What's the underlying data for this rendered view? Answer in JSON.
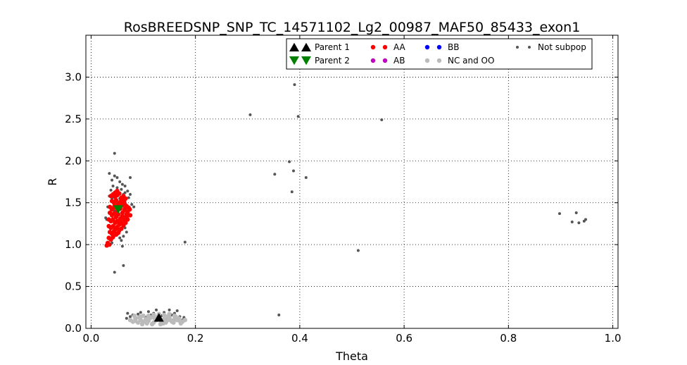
{
  "chart_data": {
    "type": "scatter",
    "title": "RosBREEDSNP_SNP_TC_14571102_Lg2_00987_MAF50_85433_exon1",
    "xlabel": "Theta",
    "ylabel": "R",
    "xlim": [
      -0.01,
      1.01
    ],
    "ylim": [
      0.0,
      3.5
    ],
    "xticks": [
      0.0,
      0.2,
      0.4,
      0.6,
      0.8,
      1.0
    ],
    "xtick_labels": [
      "0.0",
      "0.2",
      "0.4",
      "0.6",
      "0.8",
      "1.0"
    ],
    "yticks": [
      0.0,
      0.5,
      1.0,
      1.5,
      2.0,
      2.5,
      3.0
    ],
    "ytick_labels": [
      "0.0",
      "0.5",
      "1.0",
      "1.5",
      "2.0",
      "2.5",
      "3.0"
    ],
    "grid": true,
    "legend_position": "top-right",
    "series": [
      {
        "name": "Not subpop",
        "color": "#555555",
        "marker": "dot",
        "points": [
          [
            0.045,
            2.09
          ],
          [
            0.305,
            2.55
          ],
          [
            0.39,
            2.91
          ],
          [
            0.397,
            2.53
          ],
          [
            0.557,
            2.49
          ],
          [
            0.38,
            1.99
          ],
          [
            0.352,
            1.84
          ],
          [
            0.388,
            1.88
          ],
          [
            0.412,
            1.8
          ],
          [
            0.385,
            1.63
          ],
          [
            0.18,
            1.03
          ],
          [
            0.512,
            0.93
          ],
          [
            0.062,
            0.75
          ],
          [
            0.045,
            0.67
          ],
          [
            0.36,
            0.16
          ],
          [
            0.898,
            1.37
          ],
          [
            0.93,
            1.38
          ],
          [
            0.922,
            1.27
          ],
          [
            0.935,
            1.26
          ],
          [
            0.945,
            1.28
          ],
          [
            0.948,
            1.3
          ],
          [
            0.035,
            1.85
          ],
          [
            0.045,
            1.82
          ],
          [
            0.05,
            1.8
          ],
          [
            0.04,
            1.77
          ],
          [
            0.055,
            1.75
          ],
          [
            0.06,
            1.72
          ],
          [
            0.042,
            1.7
          ],
          [
            0.065,
            1.7
          ],
          [
            0.05,
            1.68
          ],
          [
            0.038,
            1.65
          ],
          [
            0.058,
            1.66
          ],
          [
            0.07,
            1.64
          ],
          [
            0.045,
            1.62
          ],
          [
            0.062,
            1.6
          ],
          [
            0.035,
            1.58
          ],
          [
            0.072,
            1.56
          ],
          [
            0.065,
            1.52
          ],
          [
            0.078,
            1.48
          ],
          [
            0.075,
            1.8
          ],
          [
            0.068,
            1.45
          ],
          [
            0.082,
            1.45
          ],
          [
            0.07,
            1.4
          ],
          [
            0.03,
            1.3
          ],
          [
            0.028,
            1.32
          ],
          [
            0.066,
            1.3
          ],
          [
            0.062,
            1.1
          ],
          [
            0.058,
            1.05
          ],
          [
            0.04,
            1.02
          ],
          [
            0.055,
            1.08
          ],
          [
            0.05,
            1.12
          ],
          [
            0.065,
            1.2
          ],
          [
            0.068,
            1.15
          ],
          [
            0.06,
            0.98
          ],
          [
            0.045,
            1.4
          ],
          [
            0.055,
            1.55
          ],
          [
            0.05,
            1.5
          ],
          [
            0.04,
            1.55
          ],
          [
            0.06,
            1.48
          ],
          [
            0.032,
            1.45
          ],
          [
            0.065,
            1.62
          ],
          [
            0.075,
            1.6
          ],
          [
            0.07,
            0.18
          ],
          [
            0.08,
            0.16
          ],
          [
            0.09,
            0.17
          ],
          [
            0.1,
            0.15
          ],
          [
            0.11,
            0.2
          ],
          [
            0.12,
            0.18
          ],
          [
            0.13,
            0.17
          ],
          [
            0.14,
            0.19
          ],
          [
            0.15,
            0.22
          ],
          [
            0.16,
            0.18
          ],
          [
            0.165,
            0.21
          ],
          [
            0.17,
            0.14
          ],
          [
            0.075,
            0.14
          ],
          [
            0.095,
            0.19
          ],
          [
            0.125,
            0.22
          ],
          [
            0.135,
            0.15
          ],
          [
            0.155,
            0.16
          ],
          [
            0.145,
            0.12
          ],
          [
            0.085,
            0.12
          ],
          [
            0.105,
            0.13
          ],
          [
            0.115,
            0.16
          ],
          [
            0.175,
            0.1
          ],
          [
            0.178,
            0.13
          ],
          [
            0.068,
            0.12
          ]
        ]
      },
      {
        "name": "NC and OO",
        "color": "#bbbbbb",
        "marker": "dot",
        "points": [
          [
            0.075,
            0.1
          ],
          [
            0.08,
            0.08
          ],
          [
            0.085,
            0.12
          ],
          [
            0.09,
            0.07
          ],
          [
            0.095,
            0.1
          ],
          [
            0.1,
            0.08
          ],
          [
            0.105,
            0.11
          ],
          [
            0.11,
            0.09
          ],
          [
            0.115,
            0.13
          ],
          [
            0.12,
            0.07
          ],
          [
            0.125,
            0.1
          ],
          [
            0.13,
            0.12
          ],
          [
            0.135,
            0.08
          ],
          [
            0.14,
            0.11
          ],
          [
            0.145,
            0.09
          ],
          [
            0.15,
            0.13
          ],
          [
            0.155,
            0.08
          ],
          [
            0.16,
            0.11
          ],
          [
            0.165,
            0.1
          ],
          [
            0.17,
            0.09
          ],
          [
            0.175,
            0.08
          ],
          [
            0.18,
            0.1
          ],
          [
            0.095,
            0.14
          ],
          [
            0.1,
            0.15
          ],
          [
            0.11,
            0.15
          ],
          [
            0.12,
            0.16
          ],
          [
            0.13,
            0.17
          ],
          [
            0.14,
            0.16
          ],
          [
            0.15,
            0.17
          ],
          [
            0.16,
            0.15
          ],
          [
            0.085,
            0.09
          ],
          [
            0.092,
            0.13
          ],
          [
            0.107,
            0.06
          ],
          [
            0.122,
            0.12
          ],
          [
            0.138,
            0.06
          ],
          [
            0.147,
            0.14
          ],
          [
            0.152,
            0.1
          ],
          [
            0.158,
            0.07
          ],
          [
            0.162,
            0.14
          ],
          [
            0.168,
            0.12
          ],
          [
            0.172,
            0.06
          ],
          [
            0.083,
            0.15
          ],
          [
            0.098,
            0.05
          ],
          [
            0.112,
            0.12
          ],
          [
            0.128,
            0.14
          ],
          [
            0.133,
            0.05
          ],
          [
            0.143,
            0.07
          ],
          [
            0.117,
            0.05
          ]
        ]
      },
      {
        "name": "AA",
        "color": "#ff0000",
        "marker": "dot",
        "points": [
          [
            0.038,
            1.58
          ],
          [
            0.042,
            1.6
          ],
          [
            0.046,
            1.57
          ],
          [
            0.05,
            1.59
          ],
          [
            0.054,
            1.61
          ],
          [
            0.058,
            1.56
          ],
          [
            0.062,
            1.58
          ],
          [
            0.066,
            1.55
          ],
          [
            0.04,
            1.52
          ],
          [
            0.044,
            1.5
          ],
          [
            0.048,
            1.53
          ],
          [
            0.052,
            1.48
          ],
          [
            0.056,
            1.51
          ],
          [
            0.06,
            1.47
          ],
          [
            0.064,
            1.49
          ],
          [
            0.068,
            1.46
          ],
          [
            0.072,
            1.44
          ],
          [
            0.036,
            1.45
          ],
          [
            0.04,
            1.42
          ],
          [
            0.044,
            1.44
          ],
          [
            0.05,
            1.4
          ],
          [
            0.056,
            1.43
          ],
          [
            0.06,
            1.38
          ],
          [
            0.064,
            1.41
          ],
          [
            0.068,
            1.36
          ],
          [
            0.07,
            1.39
          ],
          [
            0.074,
            1.42
          ],
          [
            0.036,
            1.38
          ],
          [
            0.04,
            1.35
          ],
          [
            0.044,
            1.37
          ],
          [
            0.048,
            1.33
          ],
          [
            0.052,
            1.36
          ],
          [
            0.056,
            1.31
          ],
          [
            0.06,
            1.34
          ],
          [
            0.064,
            1.3
          ],
          [
            0.068,
            1.33
          ],
          [
            0.034,
            1.3
          ],
          [
            0.038,
            1.28
          ],
          [
            0.042,
            1.3
          ],
          [
            0.046,
            1.26
          ],
          [
            0.05,
            1.28
          ],
          [
            0.054,
            1.24
          ],
          [
            0.058,
            1.27
          ],
          [
            0.062,
            1.23
          ],
          [
            0.066,
            1.26
          ],
          [
            0.034,
            1.22
          ],
          [
            0.038,
            1.2
          ],
          [
            0.042,
            1.22
          ],
          [
            0.046,
            1.18
          ],
          [
            0.05,
            1.21
          ],
          [
            0.054,
            1.17
          ],
          [
            0.058,
            1.19
          ],
          [
            0.036,
            1.15
          ],
          [
            0.04,
            1.13
          ],
          [
            0.044,
            1.16
          ],
          [
            0.048,
            1.12
          ],
          [
            0.052,
            1.14
          ],
          [
            0.034,
            1.08
          ],
          [
            0.038,
            1.06
          ],
          [
            0.042,
            1.09
          ],
          [
            0.032,
            1.02
          ],
          [
            0.035,
            1.0
          ],
          [
            0.03,
            0.99
          ],
          [
            0.058,
            1.55
          ],
          [
            0.062,
            1.52
          ],
          [
            0.045,
            1.46
          ],
          [
            0.055,
            1.45
          ],
          [
            0.065,
            1.43
          ],
          [
            0.075,
            1.35
          ],
          [
            0.07,
            1.3
          ],
          [
            0.046,
            1.62
          ],
          [
            0.05,
            1.64
          ]
        ]
      },
      {
        "name": "Parent 1",
        "color": "#000000",
        "marker": "triangle-up",
        "points": [
          [
            0.13,
            0.13
          ]
        ]
      },
      {
        "name": "Parent 2",
        "color": "#007f00",
        "marker": "triangle-down",
        "points": [
          [
            0.052,
            1.42
          ]
        ]
      }
    ],
    "legend": [
      {
        "label": "Parent 1",
        "marker": "triangle-up",
        "color": "#000000"
      },
      {
        "label": "Parent 2",
        "marker": "triangle-down",
        "color": "#007f00"
      },
      {
        "label": "AA",
        "marker": "dot",
        "color": "#ff0000"
      },
      {
        "label": "AB",
        "marker": "dot",
        "color": "#bf00bf"
      },
      {
        "label": "BB",
        "marker": "dot",
        "color": "#0000ff"
      },
      {
        "label": "NC and OO",
        "marker": "dot",
        "color": "#bbbbbb"
      },
      {
        "label": "Not subpop",
        "marker": "dot",
        "color": "#555555"
      }
    ]
  }
}
